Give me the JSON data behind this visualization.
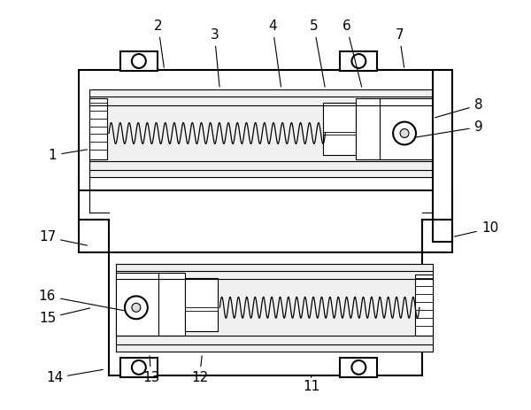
{
  "bg_color": "#ffffff",
  "line_color": "#000000",
  "lw_main": 1.5,
  "lw_thin": 0.8,
  "label_fontsize": 11,
  "annotations": [
    [
      "1",
      [
        58,
        175
      ],
      [
        100,
        168
      ]
    ],
    [
      "2",
      [
        178,
        28
      ],
      [
        185,
        78
      ]
    ],
    [
      "3",
      [
        242,
        38
      ],
      [
        248,
        100
      ]
    ],
    [
      "4",
      [
        308,
        28
      ],
      [
        318,
        100
      ]
    ],
    [
      "5",
      [
        355,
        28
      ],
      [
        368,
        100
      ]
    ],
    [
      "6",
      [
        392,
        28
      ],
      [
        410,
        100
      ]
    ],
    [
      "7",
      [
        452,
        38
      ],
      [
        458,
        78
      ]
    ],
    [
      "8",
      [
        542,
        118
      ],
      [
        490,
        133
      ]
    ],
    [
      "9",
      [
        542,
        143
      ],
      [
        468,
        155
      ]
    ],
    [
      "10",
      [
        555,
        258
      ],
      [
        512,
        268
      ]
    ],
    [
      "11",
      [
        352,
        438
      ],
      [
        352,
        425
      ]
    ],
    [
      "12",
      [
        225,
        428
      ],
      [
        228,
        400
      ]
    ],
    [
      "13",
      [
        170,
        428
      ],
      [
        168,
        400
      ]
    ],
    [
      "14",
      [
        60,
        428
      ],
      [
        118,
        418
      ]
    ],
    [
      "15",
      [
        52,
        360
      ],
      [
        103,
        348
      ]
    ],
    [
      "16",
      [
        52,
        335
      ],
      [
        142,
        352
      ]
    ],
    [
      "17",
      [
        52,
        268
      ],
      [
        100,
        278
      ]
    ]
  ]
}
